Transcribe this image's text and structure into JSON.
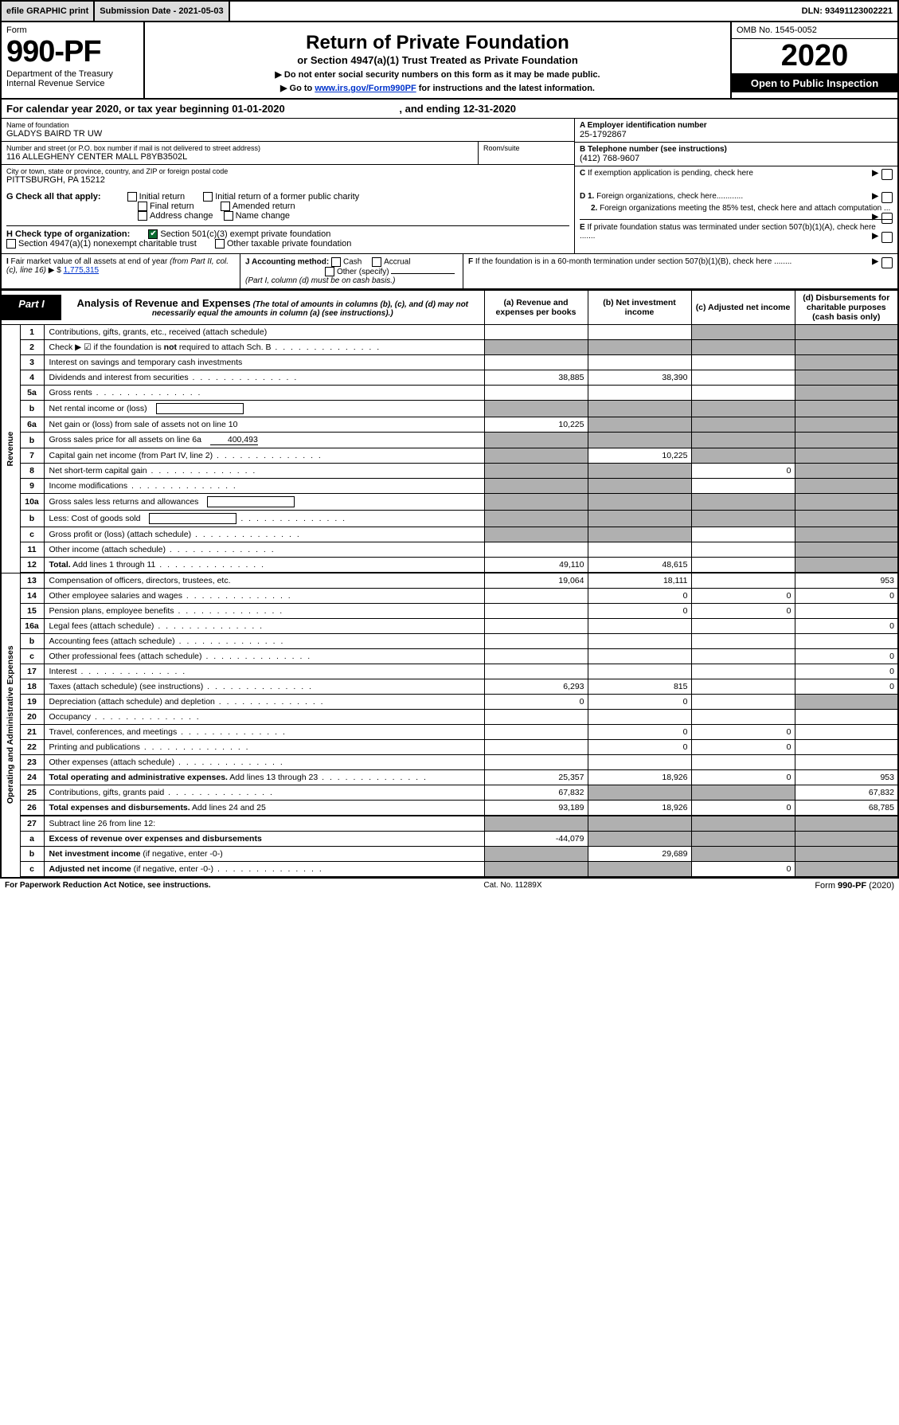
{
  "topbar": {
    "efile": "efile GRAPHIC print",
    "subdate_label": "Submission Date - 2021-05-03",
    "dln": "DLN: 93491123002221"
  },
  "header": {
    "form_word": "Form",
    "form_no": "990-PF",
    "dept": "Department of the Treasury",
    "irs": "Internal Revenue Service",
    "title": "Return of Private Foundation",
    "subtitle": "or Section 4947(a)(1) Trust Treated as Private Foundation",
    "instr1": "▶ Do not enter social security numbers on this form as it may be made public.",
    "instr2_pre": "▶ Go to ",
    "instr2_link": "www.irs.gov/Form990PF",
    "instr2_post": " for instructions and the latest information.",
    "omb": "OMB No. 1545-0052",
    "year": "2020",
    "open": "Open to Public Inspection"
  },
  "calyear": {
    "text_pre": "For calendar year 2020, or tax year beginning ",
    "begin": "01-01-2020",
    "mid": " , and ending ",
    "end": "12-31-2020"
  },
  "entity": {
    "name_label": "Name of foundation",
    "name": "GLADYS BAIRD TR UW",
    "addr_label": "Number and street (or P.O. box number if mail is not delivered to street address)",
    "addr": "116 ALLEGHENY CENTER MALL P8YB3502L",
    "room_label": "Room/suite",
    "city_label": "City or town, state or province, country, and ZIP or foreign postal code",
    "city": "PITTSBURGH, PA  15212",
    "ein_label": "A Employer identification number",
    "ein": "25-1792867",
    "tel_label": "B Telephone number (see instructions)",
    "tel": "(412) 768-9607",
    "c_label": "C If exemption application is pending, check here"
  },
  "checks": {
    "g_label": "G Check all that apply:",
    "g_opts": [
      "Initial return",
      "Initial return of a former public charity",
      "Final return",
      "Amended return",
      "Address change",
      "Name change"
    ],
    "h_label": "H Check type of organization:",
    "h_opt1": "Section 501(c)(3) exempt private foundation",
    "h_opt2": "Section 4947(a)(1) nonexempt charitable trust",
    "h_opt3": "Other taxable private foundation",
    "d1": "D 1. Foreign organizations, check here............",
    "d2": "2. Foreign organizations meeting the 85% test, check here and attach computation ...",
    "e": "E  If private foundation status was terminated under section 507(b)(1)(A), check here .......",
    "i_label": "I Fair market value of all assets at end of year (from Part II, col. (c), line 16) ▶ $",
    "i_val": "1,775,315",
    "j_label": "J Accounting method:",
    "j_cash": "Cash",
    "j_accrual": "Accrual",
    "j_other": "Other (specify)",
    "j_note": "(Part I, column (d) must be on cash basis.)",
    "f": "F  If the foundation is in a 60-month termination under section 507(b)(1)(B), check here ........"
  },
  "part1": {
    "label": "Part I",
    "title": "Analysis of Revenue and Expenses",
    "note": "(The total of amounts in columns (b), (c), and (d) may not necessarily equal the amounts in column (a) (see instructions).)",
    "col_a": "(a)   Revenue and expenses per books",
    "col_b": "(b)  Net investment income",
    "col_c": "(c)  Adjusted net income",
    "col_d": "(d)  Disbursements for charitable purposes (cash basis only)"
  },
  "vert": {
    "revenue": "Revenue",
    "expenses": "Operating and Administrative Expenses"
  },
  "rows": [
    {
      "n": "1",
      "d": "Contributions, gifts, grants, etc., received (attach schedule)",
      "a": "",
      "b": "",
      "c": "",
      "dd": "",
      "sh": [
        "c",
        "dd"
      ]
    },
    {
      "n": "2",
      "d": "Check ▶ ☑ if the foundation is <b>not</b> required to attach Sch. B",
      "a": "",
      "b": "",
      "c": "",
      "dd": "",
      "dots": 1,
      "sh": [
        "a",
        "b",
        "c",
        "dd"
      ]
    },
    {
      "n": "3",
      "d": "Interest on savings and temporary cash investments",
      "a": "",
      "b": "",
      "c": "",
      "dd": "",
      "sh": [
        "dd"
      ]
    },
    {
      "n": "4",
      "d": "Dividends and interest from securities",
      "a": "38,885",
      "b": "38,390",
      "c": "",
      "dd": "",
      "dots": 1,
      "sh": [
        "dd"
      ]
    },
    {
      "n": "5a",
      "d": "Gross rents",
      "a": "",
      "b": "",
      "c": "",
      "dd": "",
      "dots": 1,
      "sh": [
        "dd"
      ]
    },
    {
      "n": "b",
      "d": "Net rental income or (loss)",
      "a": "",
      "b": "",
      "c": "",
      "dd": "",
      "sh": [
        "a",
        "b",
        "c",
        "dd"
      ],
      "blank_in": 1
    },
    {
      "n": "6a",
      "d": "Net gain or (loss) from sale of assets not on line 10",
      "a": "10,225",
      "b": "",
      "c": "",
      "dd": "",
      "sh": [
        "b",
        "c",
        "dd"
      ]
    },
    {
      "n": "b",
      "d": "Gross sales price for all assets on line 6a",
      "a": "",
      "b": "",
      "c": "",
      "dd": "",
      "inline_val": "400,493",
      "sh": [
        "a",
        "b",
        "c",
        "dd"
      ]
    },
    {
      "n": "7",
      "d": "Capital gain net income (from Part IV, line 2)",
      "a": "",
      "b": "10,225",
      "c": "",
      "dd": "",
      "dots": 1,
      "sh": [
        "a",
        "c",
        "dd"
      ]
    },
    {
      "n": "8",
      "d": "Net short-term capital gain",
      "a": "",
      "b": "",
      "c": "0",
      "dd": "",
      "dots": 1,
      "sh": [
        "a",
        "b",
        "dd"
      ]
    },
    {
      "n": "9",
      "d": "Income modifications",
      "a": "",
      "b": "",
      "c": "",
      "dd": "",
      "dots": 1,
      "sh": [
        "a",
        "b",
        "dd"
      ]
    },
    {
      "n": "10a",
      "d": "Gross sales less returns and allowances",
      "a": "",
      "b": "",
      "c": "",
      "dd": "",
      "sh": [
        "a",
        "b",
        "c",
        "dd"
      ],
      "blank_in": 1
    },
    {
      "n": "b",
      "d": "Less: Cost of goods sold",
      "a": "",
      "b": "",
      "c": "",
      "dd": "",
      "dots": 1,
      "sh": [
        "a",
        "b",
        "c",
        "dd"
      ],
      "blank_in": 1
    },
    {
      "n": "c",
      "d": "Gross profit or (loss) (attach schedule)",
      "a": "",
      "b": "",
      "c": "",
      "dd": "",
      "dots": 1,
      "sh": [
        "a",
        "b",
        "dd"
      ]
    },
    {
      "n": "11",
      "d": "Other income (attach schedule)",
      "a": "",
      "b": "",
      "c": "",
      "dd": "",
      "dots": 1,
      "sh": [
        "dd"
      ]
    },
    {
      "n": "12",
      "d": "<b>Total.</b> Add lines 1 through 11",
      "a": "49,110",
      "b": "48,615",
      "c": "",
      "dd": "",
      "dots": 1,
      "sh": [
        "dd"
      ]
    },
    {
      "n": "13",
      "d": "Compensation of officers, directors, trustees, etc.",
      "a": "19,064",
      "b": "18,111",
      "c": "",
      "dd": "953"
    },
    {
      "n": "14",
      "d": "Other employee salaries and wages",
      "a": "",
      "b": "0",
      "c": "0",
      "dd": "0",
      "dots": 1
    },
    {
      "n": "15",
      "d": "Pension plans, employee benefits",
      "a": "",
      "b": "0",
      "c": "0",
      "dd": "",
      "dots": 1
    },
    {
      "n": "16a",
      "d": "Legal fees (attach schedule)",
      "a": "",
      "b": "",
      "c": "",
      "dd": "0",
      "dots": 1
    },
    {
      "n": "b",
      "d": "Accounting fees (attach schedule)",
      "a": "",
      "b": "",
      "c": "",
      "dd": "",
      "dots": 1
    },
    {
      "n": "c",
      "d": "Other professional fees (attach schedule)",
      "a": "",
      "b": "",
      "c": "",
      "dd": "0",
      "dots": 1
    },
    {
      "n": "17",
      "d": "Interest",
      "a": "",
      "b": "",
      "c": "",
      "dd": "0",
      "dots": 1
    },
    {
      "n": "18",
      "d": "Taxes (attach schedule) (see instructions)",
      "a": "6,293",
      "b": "815",
      "c": "",
      "dd": "0",
      "dots": 1
    },
    {
      "n": "19",
      "d": "Depreciation (attach schedule) and depletion",
      "a": "0",
      "b": "0",
      "c": "",
      "dd": "",
      "dots": 1,
      "sh": [
        "dd"
      ]
    },
    {
      "n": "20",
      "d": "Occupancy",
      "a": "",
      "b": "",
      "c": "",
      "dd": "",
      "dots": 1
    },
    {
      "n": "21",
      "d": "Travel, conferences, and meetings",
      "a": "",
      "b": "0",
      "c": "0",
      "dd": "",
      "dots": 1
    },
    {
      "n": "22",
      "d": "Printing and publications",
      "a": "",
      "b": "0",
      "c": "0",
      "dd": "",
      "dots": 1
    },
    {
      "n": "23",
      "d": "Other expenses (attach schedule)",
      "a": "",
      "b": "",
      "c": "",
      "dd": "",
      "dots": 1
    },
    {
      "n": "24",
      "d": "<b>Total operating and administrative expenses.</b> Add lines 13 through 23",
      "a": "25,357",
      "b": "18,926",
      "c": "0",
      "dd": "953",
      "dots": 1
    },
    {
      "n": "25",
      "d": "Contributions, gifts, grants paid",
      "a": "67,832",
      "b": "",
      "c": "",
      "dd": "67,832",
      "dots": 1,
      "sh": [
        "b",
        "c"
      ]
    },
    {
      "n": "26",
      "d": "<b>Total expenses and disbursements.</b> Add lines 24 and 25",
      "a": "93,189",
      "b": "18,926",
      "c": "0",
      "dd": "68,785"
    },
    {
      "n": "27",
      "d": "Subtract line 26 from line 12:",
      "a": "",
      "b": "",
      "c": "",
      "dd": "",
      "sh": [
        "a",
        "b",
        "c",
        "dd"
      ]
    },
    {
      "n": "a",
      "d": "<b>Excess of revenue over expenses and disbursements</b>",
      "a": "-44,079",
      "b": "",
      "c": "",
      "dd": "",
      "sh": [
        "b",
        "c",
        "dd"
      ]
    },
    {
      "n": "b",
      "d": "<b>Net investment income</b> (if negative, enter -0-)",
      "a": "",
      "b": "29,689",
      "c": "",
      "dd": "",
      "sh": [
        "a",
        "c",
        "dd"
      ]
    },
    {
      "n": "c",
      "d": "<b>Adjusted net income</b> (if negative, enter -0-)",
      "a": "",
      "b": "",
      "c": "0",
      "dd": "",
      "dots": 1,
      "sh": [
        "a",
        "b",
        "dd"
      ]
    }
  ],
  "footer": {
    "left": "For Paperwork Reduction Act Notice, see instructions.",
    "mid": "Cat. No. 11289X",
    "right": "Form 990-PF (2020)"
  }
}
